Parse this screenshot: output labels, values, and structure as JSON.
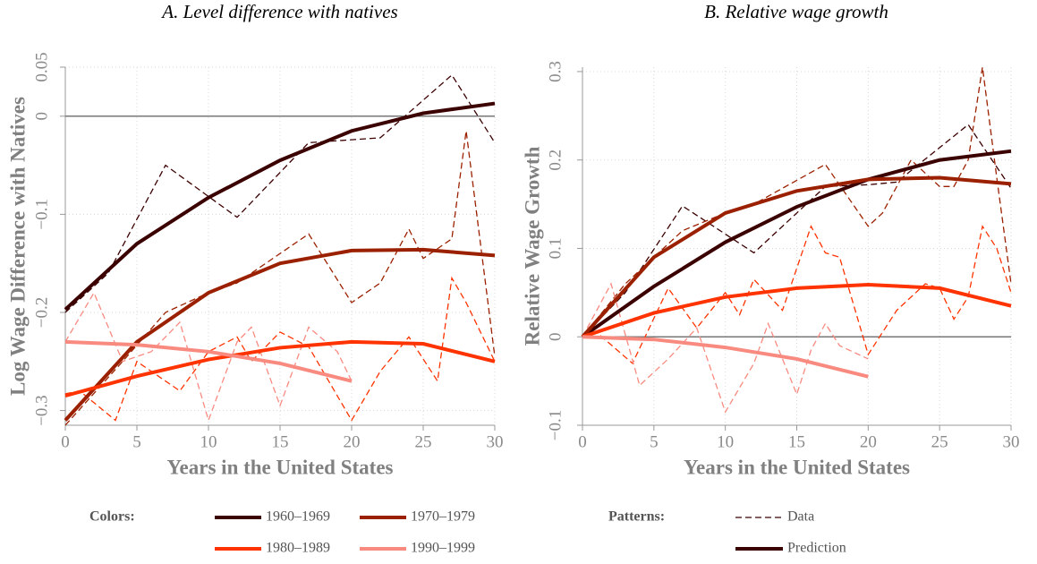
{
  "chart_data": [
    {
      "type": "line",
      "title": "A. Level difference with natives",
      "x_label": "Years in the United States",
      "y_label": "Log Wage Difference with Natives",
      "xlim": [
        0,
        30
      ],
      "xticks": [
        0,
        5,
        10,
        15,
        20,
        25,
        30
      ],
      "ylim": [
        -0.315,
        0.05
      ],
      "yticks": [
        {
          "value": -0.3,
          "label": "−0.3"
        },
        {
          "value": -0.2,
          "label": "−0.2"
        },
        {
          "value": -0.1,
          "label": "−0.1"
        },
        0,
        0.05
      ],
      "reference_line": 0,
      "grid": true,
      "series": [
        {
          "color": "#3b0000",
          "style": "dashed",
          "x": [
            0,
            3,
            7,
            12,
            17,
            22,
            27,
            30
          ],
          "values": [
            -0.2,
            -0.16,
            -0.05,
            -0.103,
            -0.027,
            -0.022,
            0.042,
            -0.027
          ]
        },
        {
          "color": "#9b2000",
          "style": "dashed",
          "x": [
            0,
            4,
            7,
            10,
            12,
            17,
            20,
            22,
            24,
            25,
            27,
            28,
            30
          ],
          "values": [
            -0.315,
            -0.25,
            -0.2,
            -0.18,
            -0.17,
            -0.12,
            -0.19,
            -0.17,
            -0.115,
            -0.145,
            -0.125,
            -0.015,
            -0.245
          ]
        },
        {
          "color": "#ff3300",
          "style": "dashed",
          "x": [
            0,
            1,
            3.5,
            5,
            8,
            10,
            12,
            13,
            15,
            17,
            20,
            22,
            24,
            26,
            27,
            28,
            30
          ],
          "values": [
            -0.283,
            -0.28,
            -0.31,
            -0.25,
            -0.28,
            -0.24,
            -0.225,
            -0.25,
            -0.22,
            -0.235,
            -0.31,
            -0.26,
            -0.225,
            -0.27,
            -0.165,
            -0.19,
            -0.25
          ]
        },
        {
          "color": "#f88a80",
          "style": "dashed",
          "x": [
            0,
            2,
            4,
            6,
            8,
            10,
            12,
            13,
            15,
            17,
            19,
            20
          ],
          "values": [
            -0.23,
            -0.18,
            -0.25,
            -0.24,
            -0.21,
            -0.31,
            -0.23,
            -0.215,
            -0.295,
            -0.215,
            -0.24,
            -0.27
          ]
        },
        {
          "color": "#3b0000",
          "style": "solid",
          "x": [
            0,
            5,
            10,
            15,
            20,
            25,
            30
          ],
          "values": [
            -0.197,
            -0.13,
            -0.083,
            -0.045,
            -0.015,
            0.003,
            0.013
          ]
        },
        {
          "color": "#9b2000",
          "style": "solid",
          "x": [
            0,
            5,
            10,
            15,
            20,
            25,
            30
          ],
          "values": [
            -0.31,
            -0.23,
            -0.18,
            -0.15,
            -0.137,
            -0.136,
            -0.142
          ]
        },
        {
          "color": "#ff3300",
          "style": "solid",
          "x": [
            0,
            5,
            10,
            15,
            20,
            25,
            30
          ],
          "values": [
            -0.285,
            -0.265,
            -0.248,
            -0.236,
            -0.23,
            -0.232,
            -0.25
          ]
        },
        {
          "color": "#f88a80",
          "style": "solid",
          "x": [
            0,
            5,
            10,
            15,
            20
          ],
          "values": [
            -0.23,
            -0.233,
            -0.24,
            -0.252,
            -0.27
          ]
        }
      ]
    },
    {
      "type": "line",
      "title": "B. Relative wage growth",
      "x_label": "Years in the United States",
      "y_label": "Relative Wage Growth",
      "xlim": [
        0,
        30
      ],
      "xticks": [
        0,
        5,
        10,
        15,
        20,
        25,
        30
      ],
      "ylim": [
        -0.1,
        0.305
      ],
      "yticks": [
        {
          "value": -0.1,
          "label": "−0.1"
        },
        0,
        0.1,
        0.2,
        0.3
      ],
      "reference_line": 0,
      "grid": true,
      "series": [
        {
          "color": "#3b0000",
          "style": "dashed",
          "x": [
            0,
            3,
            7,
            12,
            17,
            20,
            22,
            27,
            30
          ],
          "values": [
            0,
            0.05,
            0.148,
            0.095,
            0.17,
            0.172,
            0.175,
            0.24,
            0.168
          ]
        },
        {
          "color": "#9b2000",
          "style": "dashed",
          "x": [
            0,
            3,
            7,
            10,
            12,
            17,
            20,
            21,
            23,
            25,
            26,
            27,
            28,
            29,
            30
          ],
          "values": [
            0,
            0.06,
            0.12,
            0.14,
            0.15,
            0.195,
            0.125,
            0.14,
            0.2,
            0.17,
            0.17,
            0.2,
            0.305,
            0.18,
            0.06
          ]
        },
        {
          "color": "#ff3300",
          "style": "dashed",
          "x": [
            0,
            1,
            3.5,
            6,
            8,
            10,
            11,
            12,
            14,
            16,
            17,
            18,
            20,
            22,
            24,
            25,
            26,
            27,
            28,
            29,
            30
          ],
          "values": [
            0,
            0.005,
            -0.03,
            0.055,
            0.01,
            0.05,
            0.025,
            0.065,
            0.03,
            0.125,
            0.095,
            0.09,
            -0.02,
            0.03,
            0.06,
            0.055,
            0.02,
            0.045,
            0.125,
            0.1,
            0.05
          ]
        },
        {
          "color": "#f88a80",
          "style": "dashed",
          "x": [
            0,
            2,
            4,
            6,
            8,
            10,
            12,
            13,
            15,
            16,
            17,
            18,
            20
          ],
          "values": [
            0,
            0.06,
            -0.055,
            -0.025,
            0.01,
            -0.085,
            -0.03,
            0.015,
            -0.065,
            -0.015,
            0.015,
            -0.01,
            -0.025
          ]
        },
        {
          "color": "#3b0000",
          "style": "solid",
          "x": [
            0,
            5,
            10,
            15,
            20,
            25,
            30
          ],
          "values": [
            0,
            0.057,
            0.107,
            0.147,
            0.178,
            0.2,
            0.21
          ]
        },
        {
          "color": "#9b2000",
          "style": "solid",
          "x": [
            0,
            5,
            10,
            15,
            20,
            25,
            30
          ],
          "values": [
            0,
            0.09,
            0.14,
            0.165,
            0.178,
            0.18,
            0.173
          ]
        },
        {
          "color": "#ff3300",
          "style": "solid",
          "x": [
            0,
            5,
            10,
            15,
            20,
            25,
            30
          ],
          "values": [
            0,
            0.027,
            0.045,
            0.055,
            0.059,
            0.055,
            0.035
          ]
        },
        {
          "color": "#f88a80",
          "style": "solid",
          "x": [
            0,
            5,
            10,
            15,
            20
          ],
          "values": [
            0,
            -0.003,
            -0.012,
            -0.025,
            -0.045
          ]
        }
      ]
    }
  ],
  "legend": {
    "colors_label": "Colors:",
    "colors": [
      {
        "name": "1960–1969",
        "color": "#3b0000"
      },
      {
        "name": "1970–1979",
        "color": "#9b2000"
      },
      {
        "name": "1980–1989",
        "color": "#ff3300"
      },
      {
        "name": "1990–1999",
        "color": "#f88a80"
      }
    ],
    "patterns_label": "Patterns:",
    "patterns": [
      {
        "name": "Data",
        "style": "dashed",
        "color": "#3b0000"
      },
      {
        "name": "Prediction",
        "style": "solid",
        "color": "#3b0000"
      }
    ]
  }
}
